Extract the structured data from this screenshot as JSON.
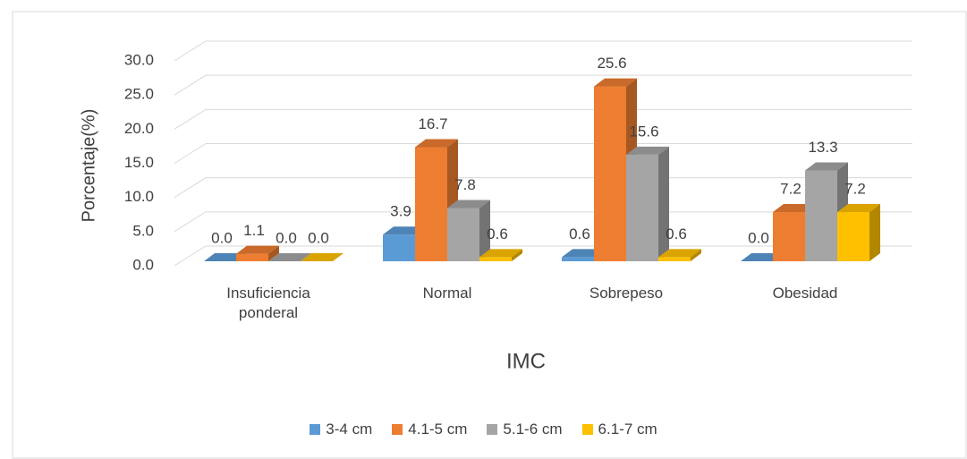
{
  "chart_data": {
    "type": "bar3d",
    "categories": [
      "Insuficiencia ponderal",
      "Normal",
      "Sobrepeso",
      "Obesidad"
    ],
    "series": [
      {
        "name": "3-4 cm",
        "color": "#5b9bd5",
        "values": [
          0.0,
          3.9,
          0.6,
          0.0
        ],
        "value_labels": [
          "0.0",
          "3.9",
          "0.6",
          "0.0"
        ]
      },
      {
        "name": "4.1-5 cm",
        "color": "#ed7d31",
        "values": [
          1.1,
          16.7,
          25.6,
          7.2
        ],
        "value_labels": [
          "1.1",
          "16.7",
          "25.6",
          "7.2"
        ]
      },
      {
        "name": "5.1-6 cm",
        "color": "#a5a5a5",
        "values": [
          0.0,
          7.8,
          15.6,
          13.3
        ],
        "value_labels": [
          "0.0",
          "7.8",
          "15.6",
          "13.3"
        ]
      },
      {
        "name": "6.1-7 cm",
        "color": "#ffc000",
        "values": [
          0.0,
          0.6,
          0.6,
          7.2
        ],
        "value_labels": [
          "0.0",
          "0.6",
          "0.6",
          "7.2"
        ]
      }
    ],
    "xlabel": "IMC",
    "ylabel": "Porcentaje(%)",
    "ylim": [
      0,
      30
    ],
    "yticks": [
      {
        "value": 0,
        "label": "0.0"
      },
      {
        "value": 5,
        "label": "5.0"
      },
      {
        "value": 10,
        "label": "10.0"
      },
      {
        "value": 15,
        "label": "15.0"
      },
      {
        "value": 20,
        "label": "20.0"
      },
      {
        "value": 25,
        "label": "25.0"
      },
      {
        "value": 30,
        "label": "30.0"
      }
    ],
    "grid": true,
    "legend": "bottom"
  }
}
